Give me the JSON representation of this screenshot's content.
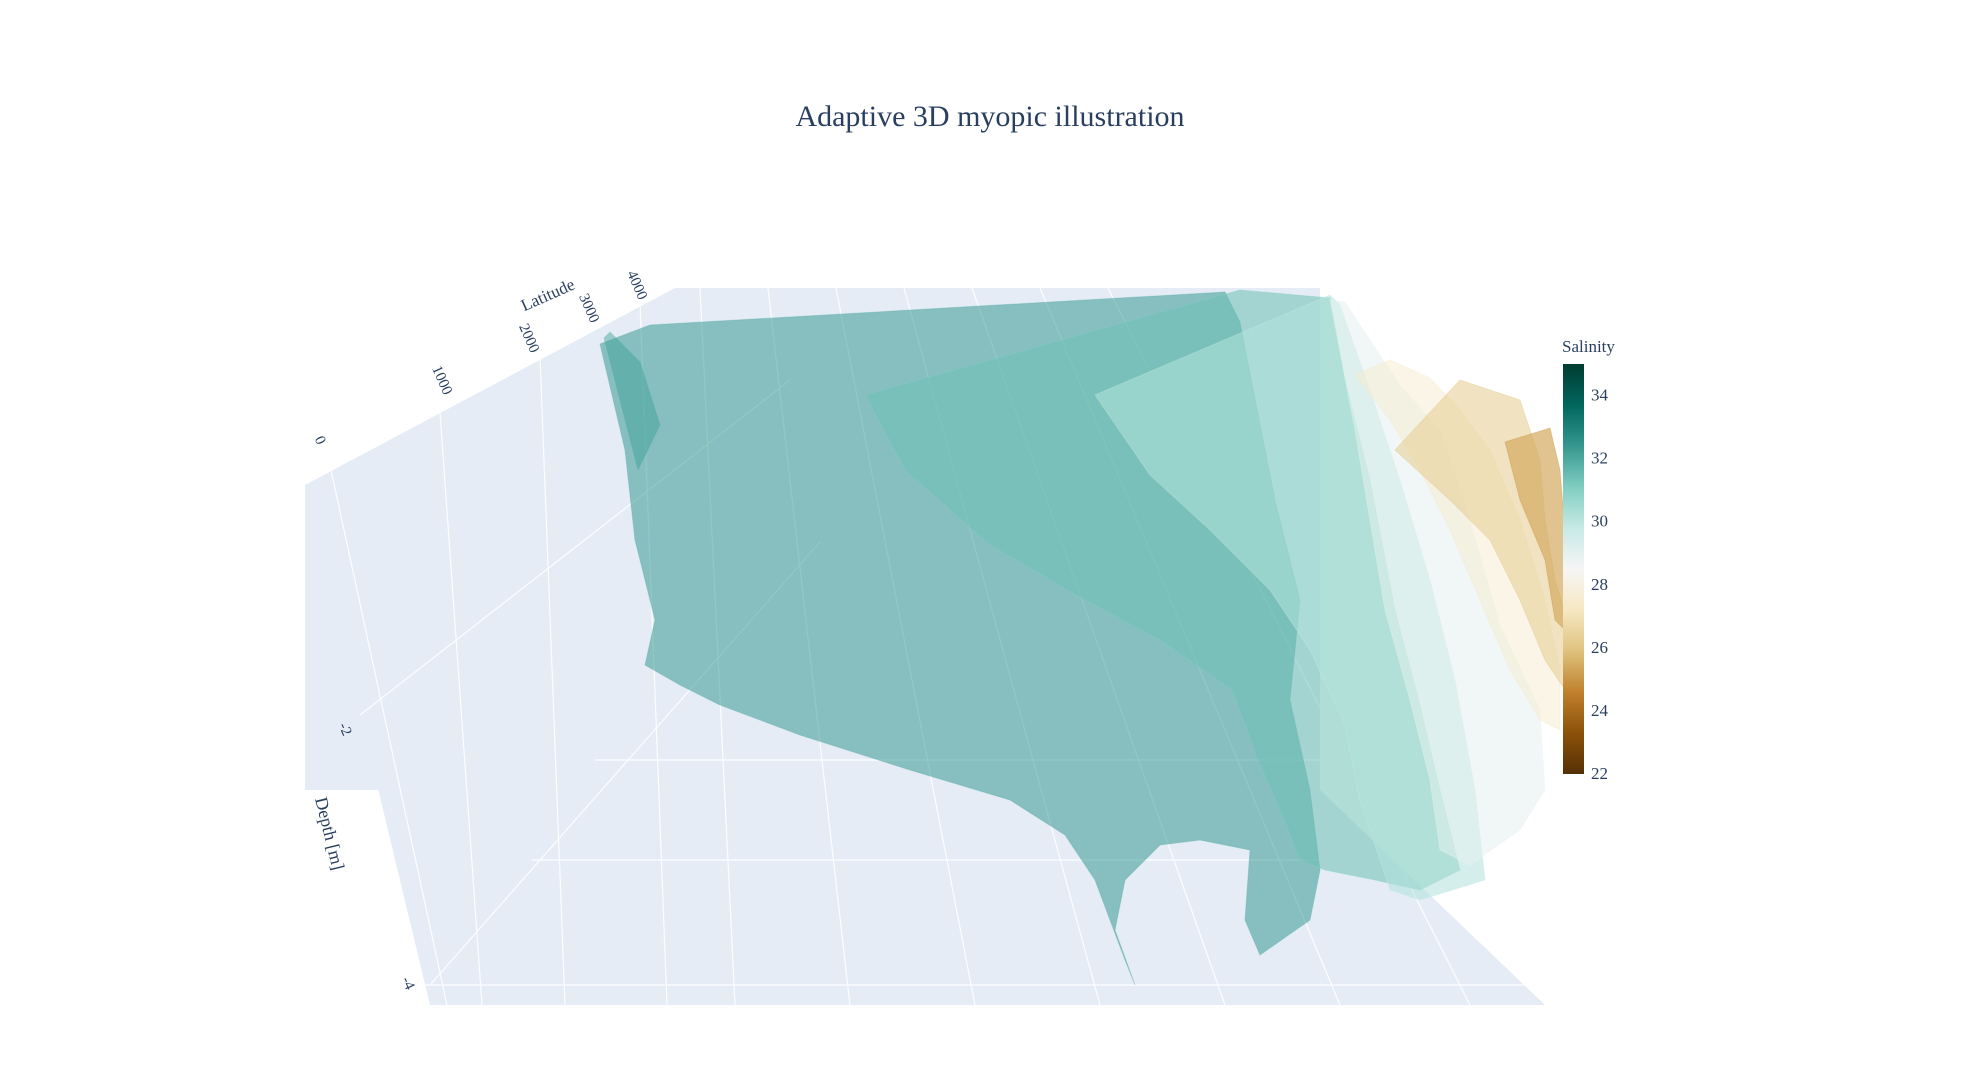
{
  "chart_data": {
    "type": "surface",
    "title": "Adaptive 3D myopic illustration",
    "axes": {
      "latitude": {
        "label": "Latitude",
        "ticks": [
          "0",
          "1000",
          "2000",
          "3000",
          "4000"
        ]
      },
      "depth": {
        "label": "Depth [m]",
        "ticks": [
          "-2",
          "-4"
        ]
      }
    },
    "colorbar": {
      "title": "Salinity",
      "ticks": [
        34,
        32,
        30,
        28,
        26,
        24,
        22
      ],
      "range": [
        22,
        35
      ],
      "colorscale": [
        [
          0.0,
          "#543005"
        ],
        [
          0.1,
          "#8c510a"
        ],
        [
          0.2,
          "#bf812d"
        ],
        [
          0.3,
          "#dfc27d"
        ],
        [
          0.4,
          "#f6e8c3"
        ],
        [
          0.5,
          "#f5f5f5"
        ],
        [
          0.6,
          "#c7eae5"
        ],
        [
          0.7,
          "#80cdc1"
        ],
        [
          0.8,
          "#35978f"
        ],
        [
          0.9,
          "#01665e"
        ],
        [
          1.0,
          "#003c30"
        ]
      ]
    },
    "series": [
      {
        "salinity": 31.8,
        "opacity": 0.55
      },
      {
        "salinity": 32.3,
        "opacity": 0.55
      },
      {
        "salinity": 31.4,
        "opacity": 0.55
      },
      {
        "salinity": 30.2,
        "opacity": 0.55
      },
      {
        "salinity": 29.0,
        "opacity": 0.55
      },
      {
        "salinity": 27.6,
        "opacity": 0.55
      },
      {
        "salinity": 26.4,
        "opacity": 0.6
      },
      {
        "salinity": 25.4,
        "opacity": 0.7
      }
    ],
    "colors": {
      "scene_background": "#e5ecf6",
      "grid": "#ffffff",
      "text": "#2a3f5f"
    }
  }
}
